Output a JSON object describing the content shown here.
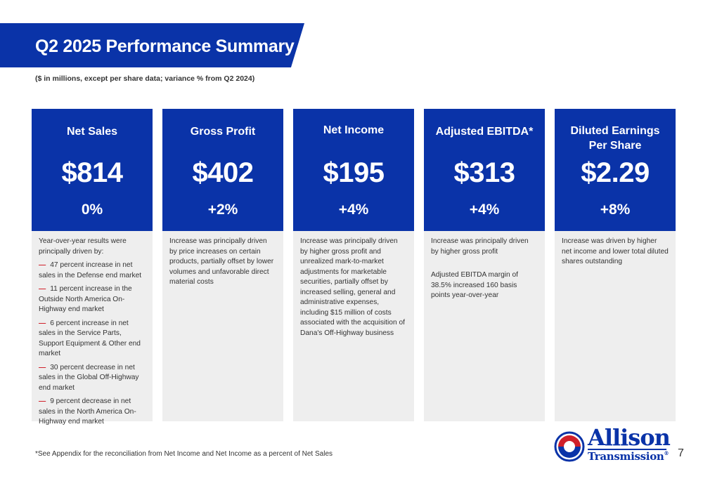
{
  "header": {
    "title": "Q2 2025 Performance Summary",
    "subtitle": "($ in millions, except per share data; variance % from Q2 2024)"
  },
  "colors": {
    "brand_blue": "#0a33a8",
    "accent_red": "#d0202a",
    "card_body_bg": "#eeeeee"
  },
  "cards": [
    {
      "label": "Net Sales",
      "value": "$814",
      "variance": "0%",
      "intro": "Year-over-year results were principally driven by:",
      "bullets": [
        "47 percent increase in net sales in the Defense end market",
        "11 percent increase in the Outside North America On-Highway end market",
        "6 percent increase in net sales in the Service Parts, Support Equipment & Other end market",
        "30 percent decrease in net sales in the Global Off-Highway end market",
        "9 percent decrease in net sales in the North America On-Highway end market"
      ]
    },
    {
      "label": "Gross Profit",
      "value": "$402",
      "variance": "+2%",
      "text": "Increase was principally driven by price increases on certain products, partially offset by lower volumes and unfavorable direct material costs"
    },
    {
      "label": "Net Income",
      "value": "$195",
      "variance": "+4%",
      "text": "Increase was principally driven by higher gross profit and unrealized mark-to-market adjustments for marketable securities, partially offset by increased selling, general and administrative expenses, including $15 million of costs associated with the acquisition of Dana's Off-Highway business"
    },
    {
      "label": "Adjusted EBITDA*",
      "value": "$313",
      "variance": "+4%",
      "text": "Increase was principally driven by higher gross profit",
      "text2": "Adjusted EBITDA margin of 38.5% increased 160 basis points year-over-year"
    },
    {
      "label": "Diluted Earnings Per Share",
      "value": "$2.29",
      "variance": "+8%",
      "text": "Increase was driven by higher net income and lower total diluted shares outstanding"
    }
  ],
  "footnote": "*See Appendix for the reconciliation from Net Income and Net Income as a percent of Net Sales",
  "logo": {
    "line1": "Allison",
    "line2": "Transmission",
    "mark": "®"
  },
  "page_number": "7"
}
